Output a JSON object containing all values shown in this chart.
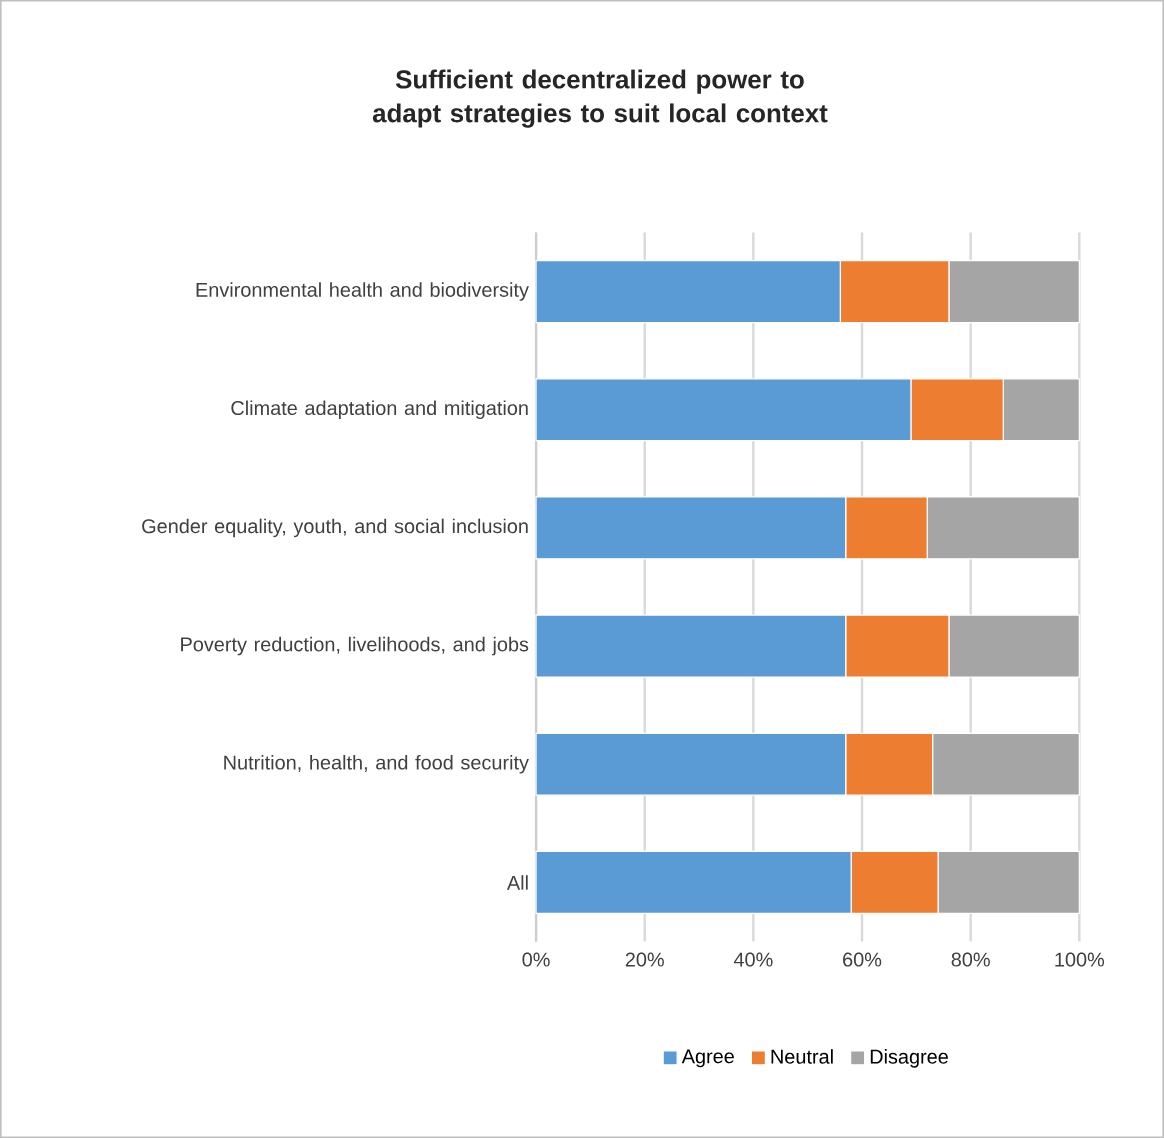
{
  "chart_data": {
    "type": "bar",
    "orientation": "horizontal",
    "stacked": true,
    "title": "Sufficient decentralized power to adapt strategies to suit local context",
    "categories": [
      "Environmental health and biodiversity",
      "Climate adaptation and mitigation",
      "Gender equality, youth, and social inclusion",
      "Poverty reduction, livelihoods, and jobs",
      "Nutrition, health, and food security",
      "All"
    ],
    "series": [
      {
        "name": "Agree",
        "color": "#5b9bd5",
        "values": [
          56,
          69,
          57,
          57,
          57,
          58
        ]
      },
      {
        "name": "Neutral",
        "color": "#ed7d31",
        "values": [
          20,
          17,
          15,
          19,
          16,
          16
        ]
      },
      {
        "name": "Disagree",
        "color": "#a5a5a5",
        "values": [
          24,
          14,
          28,
          24,
          27,
          26
        ]
      }
    ],
    "xlim": [
      0,
      100
    ],
    "xticks": [
      {
        "value": 0,
        "label": "0%"
      },
      {
        "value": 20,
        "label": "20%"
      },
      {
        "value": 40,
        "label": "40%"
      },
      {
        "value": 60,
        "label": "60%"
      },
      {
        "value": 80,
        "label": "80%"
      },
      {
        "value": 100,
        "label": "100%"
      }
    ],
    "grid": "x",
    "legend": "bottom"
  }
}
